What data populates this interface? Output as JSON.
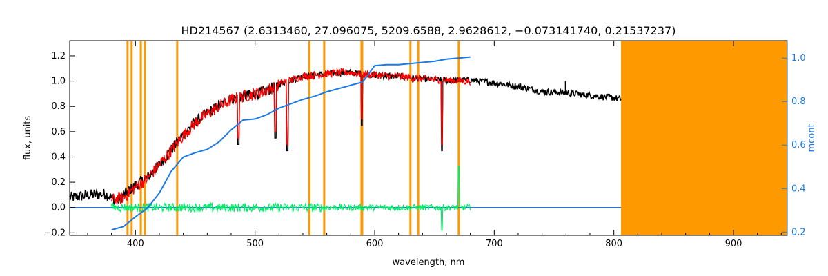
{
  "chart_data": {
    "type": "line",
    "title": "HD214567   (2.6313460, 27.096075, 5209.6588, 2.9628612, −0.073141740, 0.21537237)",
    "xlabel": "wavelength, nm",
    "ylabel_left": "flux, units",
    "ylabel_right": "mcont",
    "xlim": [
      345,
      945
    ],
    "ylim_left": [
      -0.22,
      1.32
    ],
    "ylim_right": [
      0.185,
      1.08
    ],
    "x_ticks": [
      "400",
      "500",
      "600",
      "700",
      "800",
      "900"
    ],
    "y_ticks_left": [
      "−0.2",
      "0.0",
      "0.2",
      "0.4",
      "0.6",
      "0.8",
      "1.0",
      "1.2"
    ],
    "y_ticks_right": [
      "0.2",
      "0.4",
      "0.6",
      "0.8",
      "1.0"
    ],
    "masked_lines_nm": [
      393.4,
      396.8,
      404.5,
      407.8,
      434.9,
      545.5,
      557.8,
      589.0,
      589.6,
      629.9,
      636.4,
      670.3
    ],
    "masked_region_nm": [
      806,
      945
    ],
    "colors": {
      "observed": "#000000",
      "model": "#ff0000",
      "residual": "#00ee66",
      "mcont": "#1a7ae6",
      "mask": "#ff9900",
      "right_axis": "#1a7ae6"
    },
    "series": [
      {
        "name": "",
        "role": "observed",
        "x": [
          345,
          360,
          375,
          385,
          390,
          400,
          410,
          420,
          430,
          440,
          450,
          460,
          470,
          480,
          490,
          500,
          510,
          520,
          530,
          540,
          550,
          560,
          570,
          580,
          590,
          600,
          620,
          640,
          660,
          680,
          700,
          720,
          740,
          760,
          780,
          800,
          806
        ],
        "y": [
          0.1,
          0.12,
          0.13,
          0.07,
          0.12,
          0.2,
          0.26,
          0.36,
          0.48,
          0.6,
          0.7,
          0.77,
          0.83,
          0.88,
          0.9,
          0.92,
          0.95,
          0.99,
          1.02,
          1.05,
          1.06,
          1.07,
          1.08,
          1.08,
          1.07,
          1.06,
          1.05,
          1.03,
          1.02,
          1.02,
          1.0,
          0.97,
          0.93,
          0.92,
          0.9,
          0.88,
          0.87
        ]
      },
      {
        "name": "",
        "role": "model",
        "x": [
          380,
          390,
          400,
          410,
          420,
          430,
          440,
          450,
          460,
          470,
          480,
          490,
          500,
          510,
          520,
          530,
          540,
          550,
          560,
          570,
          580,
          590,
          600,
          620,
          640,
          660,
          680
        ],
        "y": [
          0.08,
          0.1,
          0.18,
          0.25,
          0.36,
          0.47,
          0.59,
          0.69,
          0.76,
          0.82,
          0.87,
          0.9,
          0.92,
          0.95,
          0.99,
          1.02,
          1.05,
          1.06,
          1.07,
          1.08,
          1.08,
          1.07,
          1.06,
          1.05,
          1.03,
          1.02,
          1.01
        ]
      },
      {
        "name": "",
        "role": "residual",
        "x": [
          380,
          680
        ],
        "y": [
          0.0,
          0.0
        ]
      },
      {
        "name": "",
        "role": "mcont",
        "axis": "right",
        "x": [
          380,
          390,
          400,
          410,
          420,
          430,
          440,
          450,
          460,
          470,
          480,
          490,
          500,
          510,
          520,
          530,
          540,
          550,
          560,
          570,
          580,
          590,
          600,
          610,
          620,
          630,
          640,
          650,
          660,
          670,
          680
        ],
        "y": [
          0.21,
          0.225,
          0.27,
          0.31,
          0.38,
          0.48,
          0.545,
          0.565,
          0.58,
          0.615,
          0.67,
          0.715,
          0.72,
          0.74,
          0.77,
          0.79,
          0.81,
          0.825,
          0.845,
          0.86,
          0.875,
          0.89,
          0.965,
          0.97,
          0.97,
          0.975,
          0.98,
          0.985,
          0.995,
          1.0,
          1.005
        ]
      },
      {
        "name": "",
        "role": "baseline",
        "x": [
          345,
          806
        ],
        "y": [
          0.0,
          0.0
        ]
      }
    ],
    "deep_lines": [
      {
        "x": 589.3,
        "depth_to": 0.65
      },
      {
        "x": 656.3,
        "depth_to": 0.45
      },
      {
        "x": 517,
        "depth_to": 0.55
      },
      {
        "x": 486,
        "depth_to": 0.5
      },
      {
        "x": 527,
        "depth_to": 0.45
      }
    ],
    "feature_x": 759.5
  }
}
